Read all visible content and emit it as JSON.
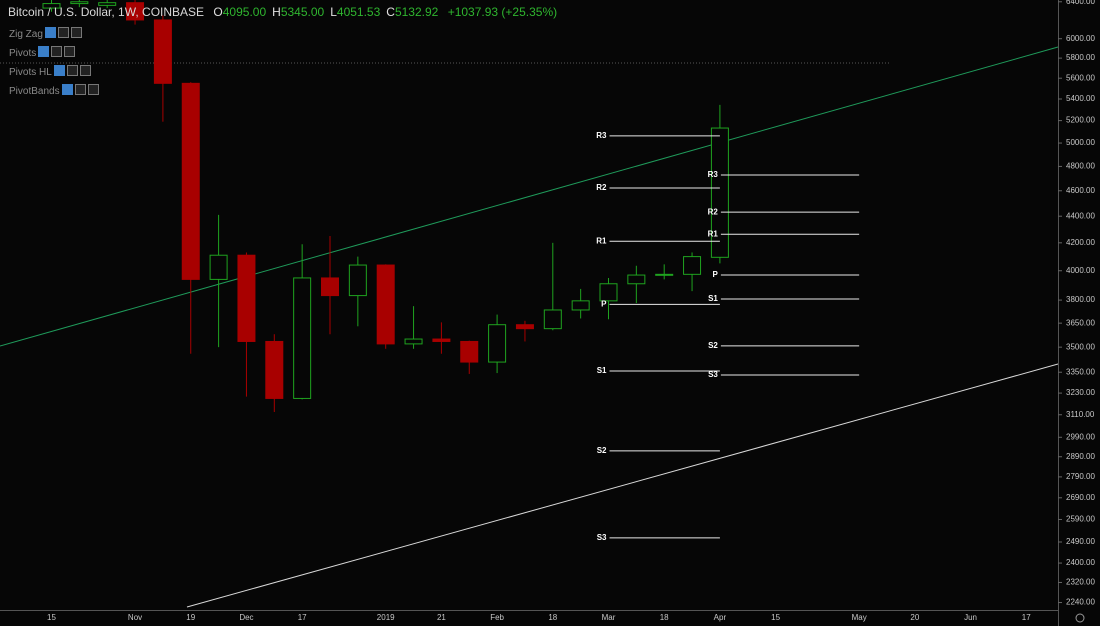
{
  "header": {
    "symbol": "Bitcoin / U.S. Dollar, 1W, COINBASE",
    "ohlc": [
      {
        "key": "O",
        "value": "4095.00"
      },
      {
        "key": "H",
        "value": "5345.00"
      },
      {
        "key": "L",
        "value": "4051.53"
      },
      {
        "key": "C",
        "value": "5132.92"
      }
    ],
    "change": "+1037.93 (+25.35%)",
    "indicators": [
      "Zig Zag",
      "Pivots",
      "Pivots HL",
      "PivotBands"
    ]
  },
  "chart_data": {
    "type": "candlestick",
    "log_scale": true,
    "up_color": "#1fa31f",
    "down_color": "#a80000",
    "categories": [
      "15",
      null,
      null,
      "Nov",
      null,
      "19",
      null,
      "Dec",
      null,
      "17",
      null,
      null,
      "2019",
      null,
      "21",
      null,
      "Feb",
      null,
      "18",
      null,
      "Mar",
      null,
      "18",
      null,
      "Apr",
      null,
      "15",
      null,
      null,
      "May",
      null,
      "20",
      null,
      "Jun",
      null,
      "17",
      null
    ],
    "open": [
      6330,
      6380,
      6360,
      6390,
      6200,
      5550,
      3940,
      4110,
      3535,
      3200,
      3950,
      3830,
      4040,
      3520,
      3550,
      3535,
      3410,
      3640,
      3615,
      3735,
      3795,
      3910,
      3970,
      3975,
      4095,
      null,
      null,
      null,
      null,
      null,
      null,
      null,
      null,
      null,
      null,
      null,
      null
    ],
    "high": [
      6420,
      6420,
      6420,
      6420,
      6250,
      5560,
      4410,
      4130,
      3580,
      4190,
      4250,
      4100,
      4045,
      3760,
      3655,
      3540,
      3705,
      3665,
      4200,
      3875,
      3950,
      4035,
      4045,
      4130,
      5345,
      null,
      null,
      null,
      null,
      null,
      null,
      null,
      null,
      null,
      null,
      null,
      null
    ],
    "low": [
      6290,
      6340,
      6330,
      6150,
      5190,
      3460,
      3500,
      3210,
      3125,
      3195,
      3580,
      3630,
      3490,
      3490,
      3460,
      3340,
      3345,
      3535,
      3605,
      3680,
      3675,
      3780,
      3940,
      3860,
      4051.53,
      null,
      null,
      null,
      null,
      null,
      null,
      null,
      null,
      null,
      null,
      null,
      null
    ],
    "close": [
      6380,
      6400,
      6390,
      6200,
      5550,
      3940,
      4110,
      3535,
      3200,
      3950,
      3830,
      4040,
      3520,
      3550,
      3535,
      3410,
      3640,
      3615,
      3735,
      3795,
      3910,
      3970,
      3975,
      4100,
      5132.92,
      null,
      null,
      null,
      null,
      null,
      null,
      null,
      null,
      null,
      null,
      null,
      null
    ],
    "ylim": [
      2211,
      6420
    ],
    "yticks": [
      {
        "value": 6400,
        "label": "6400.00"
      },
      {
        "value": 6000,
        "label": "6000.00"
      },
      {
        "value": 5800,
        "label": "5800.00"
      },
      {
        "value": 5600,
        "label": "5600.00"
      },
      {
        "value": 5400,
        "label": "5400.00"
      },
      {
        "value": 5200,
        "label": "5200.00"
      },
      {
        "value": 5000,
        "label": "5000.00"
      },
      {
        "value": 4800,
        "label": "4800.00"
      },
      {
        "value": 4600,
        "label": "4600.00"
      },
      {
        "value": 4400,
        "label": "4400.00"
      },
      {
        "value": 4200,
        "label": "4200.00"
      },
      {
        "value": 4000,
        "label": "4000.00"
      },
      {
        "value": 3800,
        "label": "3800.00"
      },
      {
        "value": 3650,
        "label": "3650.00"
      },
      {
        "value": 3500,
        "label": "3500.00"
      },
      {
        "value": 3350,
        "label": "3350.00"
      },
      {
        "value": 3230,
        "label": "3230.00"
      },
      {
        "value": 3110,
        "label": "3110.00"
      },
      {
        "value": 2990,
        "label": "2990.00"
      },
      {
        "value": 2890,
        "label": "2890.00"
      },
      {
        "value": 2790,
        "label": "2790.00"
      },
      {
        "value": 2690,
        "label": "2690.00"
      },
      {
        "value": 2590,
        "label": "2590.00"
      },
      {
        "value": 2490,
        "label": "2490.00"
      },
      {
        "value": 2400,
        "label": "2400.00"
      },
      {
        "value": 2320,
        "label": "2320.00"
      },
      {
        "value": 2240,
        "label": "2240.00"
      }
    ],
    "pivots": [
      {
        "levels": [
          {
            "label": "R3",
            "value": 5063
          },
          {
            "label": "R2",
            "value": 4622
          },
          {
            "label": "R1",
            "value": 4212
          },
          {
            "label": "P",
            "value": 3772
          },
          {
            "label": "S1",
            "value": 3357
          },
          {
            "label": "S2",
            "value": 2920
          },
          {
            "label": "S3",
            "value": 2508
          }
        ]
      },
      {
        "levels": [
          {
            "label": "R3",
            "value": 4728
          },
          {
            "label": "R2",
            "value": 4431
          },
          {
            "label": "R1",
            "value": 4263
          },
          {
            "label": "P",
            "value": 3970
          },
          {
            "label": "S1",
            "value": 3807
          },
          {
            "label": "S2",
            "value": 3508
          },
          {
            "label": "S3",
            "value": 3334
          }
        ]
      }
    ]
  }
}
